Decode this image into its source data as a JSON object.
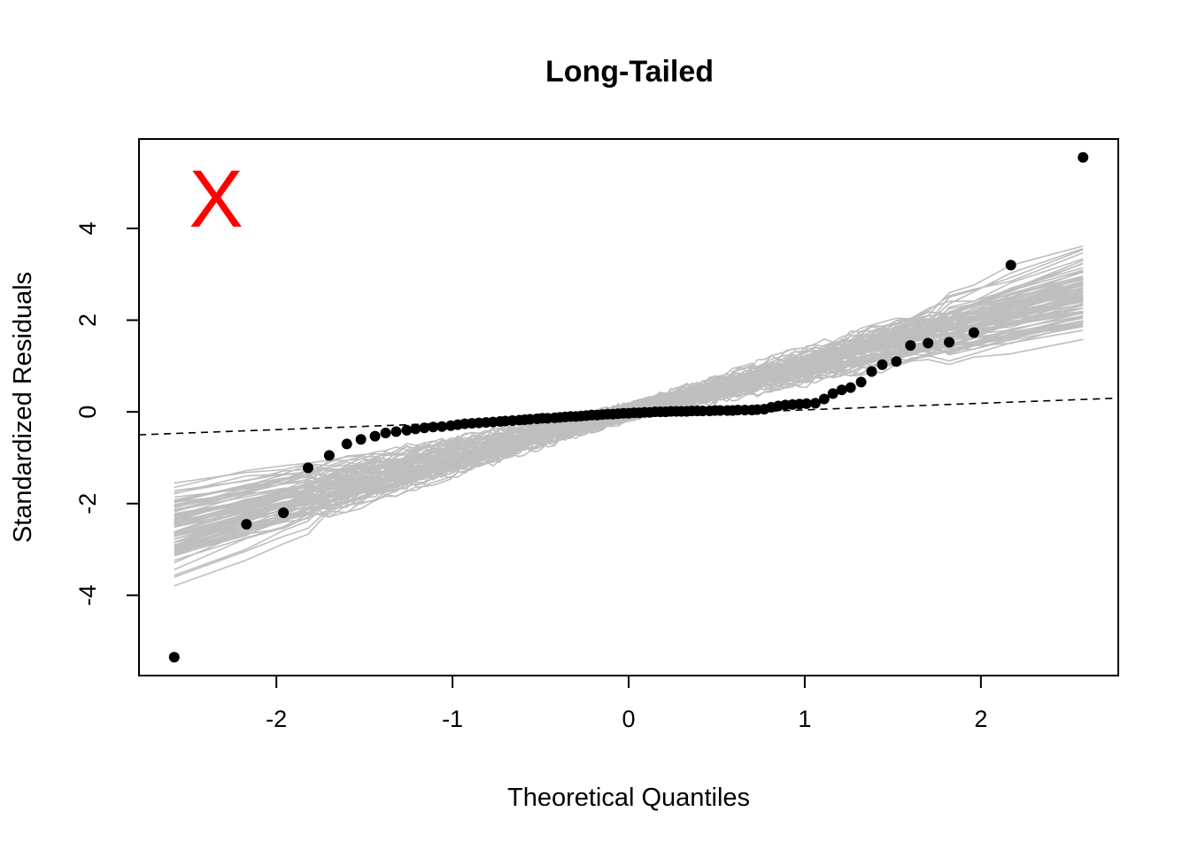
{
  "chart_data": {
    "type": "scatter",
    "title": "Long-Tailed",
    "xlabel": "Theoretical Quantiles",
    "ylabel": "Standardized Residuals",
    "xlim": [
      -2.78,
      2.78
    ],
    "ylim": [
      -5.75,
      5.95
    ],
    "x_ticks": [
      -2,
      -1,
      0,
      1,
      2
    ],
    "y_ticks": [
      -4,
      -2,
      0,
      2,
      4
    ],
    "marker": "X",
    "marker_color": "#ff0000",
    "point_color": "#000000",
    "envelope_color": "#bebebe",
    "reference_line": {
      "type": "dashed",
      "x": [
        -2.78,
        2.78
      ],
      "y": [
        -0.5,
        0.3
      ]
    },
    "points": [
      {
        "x": -2.58,
        "y": -5.35
      },
      {
        "x": -2.17,
        "y": -2.45
      },
      {
        "x": -1.96,
        "y": -2.2
      },
      {
        "x": -1.82,
        "y": -1.22
      },
      {
        "x": -1.7,
        "y": -0.95
      },
      {
        "x": -1.6,
        "y": -0.7
      },
      {
        "x": -1.52,
        "y": -0.6
      },
      {
        "x": -1.44,
        "y": -0.53
      },
      {
        "x": -1.38,
        "y": -0.46
      },
      {
        "x": -1.32,
        "y": -0.43
      },
      {
        "x": -1.26,
        "y": -0.4
      },
      {
        "x": -1.21,
        "y": -0.37
      },
      {
        "x": -1.16,
        "y": -0.35
      },
      {
        "x": -1.11,
        "y": -0.33
      },
      {
        "x": -1.06,
        "y": -0.32
      },
      {
        "x": -1.01,
        "y": -0.3
      },
      {
        "x": -0.97,
        "y": -0.28
      },
      {
        "x": -0.93,
        "y": -0.26
      },
      {
        "x": -0.89,
        "y": -0.25
      },
      {
        "x": -0.85,
        "y": -0.24
      },
      {
        "x": -0.81,
        "y": -0.23
      },
      {
        "x": -0.77,
        "y": -0.22
      },
      {
        "x": -0.73,
        "y": -0.21
      },
      {
        "x": -0.7,
        "y": -0.2
      },
      {
        "x": -0.66,
        "y": -0.19
      },
      {
        "x": -0.62,
        "y": -0.18
      },
      {
        "x": -0.59,
        "y": -0.17
      },
      {
        "x": -0.56,
        "y": -0.16
      },
      {
        "x": -0.52,
        "y": -0.15
      },
      {
        "x": -0.49,
        "y": -0.14
      },
      {
        "x": -0.46,
        "y": -0.14
      },
      {
        "x": -0.42,
        "y": -0.13
      },
      {
        "x": -0.39,
        "y": -0.12
      },
      {
        "x": -0.36,
        "y": -0.11
      },
      {
        "x": -0.33,
        "y": -0.1
      },
      {
        "x": -0.3,
        "y": -0.1
      },
      {
        "x": -0.27,
        "y": -0.09
      },
      {
        "x": -0.24,
        "y": -0.08
      },
      {
        "x": -0.21,
        "y": -0.07
      },
      {
        "x": -0.18,
        "y": -0.07
      },
      {
        "x": -0.15,
        "y": -0.06
      },
      {
        "x": -0.12,
        "y": -0.05
      },
      {
        "x": -0.09,
        "y": -0.05
      },
      {
        "x": -0.06,
        "y": -0.04
      },
      {
        "x": -0.03,
        "y": -0.03
      },
      {
        "x": 0.0,
        "y": -0.03
      },
      {
        "x": 0.03,
        "y": -0.02
      },
      {
        "x": 0.06,
        "y": -0.02
      },
      {
        "x": 0.09,
        "y": -0.01
      },
      {
        "x": 0.12,
        "y": -0.01
      },
      {
        "x": 0.15,
        "y": 0.0
      },
      {
        "x": 0.18,
        "y": 0.0
      },
      {
        "x": 0.21,
        "y": 0.0
      },
      {
        "x": 0.24,
        "y": 0.01
      },
      {
        "x": 0.27,
        "y": 0.01
      },
      {
        "x": 0.3,
        "y": 0.01
      },
      {
        "x": 0.33,
        "y": 0.01
      },
      {
        "x": 0.36,
        "y": 0.02
      },
      {
        "x": 0.39,
        "y": 0.02
      },
      {
        "x": 0.42,
        "y": 0.02
      },
      {
        "x": 0.46,
        "y": 0.02
      },
      {
        "x": 0.49,
        "y": 0.03
      },
      {
        "x": 0.52,
        "y": 0.03
      },
      {
        "x": 0.56,
        "y": 0.03
      },
      {
        "x": 0.59,
        "y": 0.03
      },
      {
        "x": 0.62,
        "y": 0.04
      },
      {
        "x": 0.66,
        "y": 0.04
      },
      {
        "x": 0.7,
        "y": 0.04
      },
      {
        "x": 0.73,
        "y": 0.05
      },
      {
        "x": 0.77,
        "y": 0.06
      },
      {
        "x": 0.81,
        "y": 0.1
      },
      {
        "x": 0.85,
        "y": 0.13
      },
      {
        "x": 0.89,
        "y": 0.15
      },
      {
        "x": 0.93,
        "y": 0.16
      },
      {
        "x": 0.97,
        "y": 0.17
      },
      {
        "x": 1.01,
        "y": 0.18
      },
      {
        "x": 1.06,
        "y": 0.19
      },
      {
        "x": 1.11,
        "y": 0.28
      },
      {
        "x": 1.16,
        "y": 0.4
      },
      {
        "x": 1.21,
        "y": 0.48
      },
      {
        "x": 1.26,
        "y": 0.53
      },
      {
        "x": 1.32,
        "y": 0.65
      },
      {
        "x": 1.38,
        "y": 0.88
      },
      {
        "x": 1.44,
        "y": 1.03
      },
      {
        "x": 1.52,
        "y": 1.1
      },
      {
        "x": 1.6,
        "y": 1.45
      },
      {
        "x": 1.7,
        "y": 1.5
      },
      {
        "x": 1.82,
        "y": 1.52
      },
      {
        "x": 1.96,
        "y": 1.73
      },
      {
        "x": 2.17,
        "y": 3.2
      },
      {
        "x": 2.58,
        "y": 5.55
      }
    ]
  }
}
